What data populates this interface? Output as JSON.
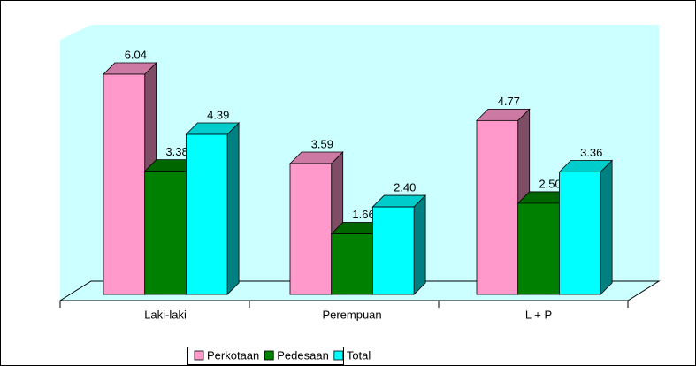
{
  "chart_data": {
    "type": "bar3d",
    "categories": [
      "Laki-laki",
      "Perempuan",
      "L + P"
    ],
    "series": [
      {
        "name": "Perkotaan",
        "color": "#ff99cc",
        "values": [
          6.04,
          3.59,
          4.77
        ],
        "value_labels": [
          "6.04",
          "3.59",
          "4.77"
        ]
      },
      {
        "name": "Pedesaan",
        "color": "#008000",
        "values": [
          3.38,
          1.66,
          2.5
        ],
        "value_labels": [
          "3.38",
          "1.66",
          "2.50"
        ]
      },
      {
        "name": "Total",
        "color": "#00ffff",
        "values": [
          4.39,
          2.4,
          3.36
        ],
        "value_labels": [
          "4.39",
          "2.40",
          "3.36"
        ]
      }
    ],
    "legend": "bottom"
  }
}
